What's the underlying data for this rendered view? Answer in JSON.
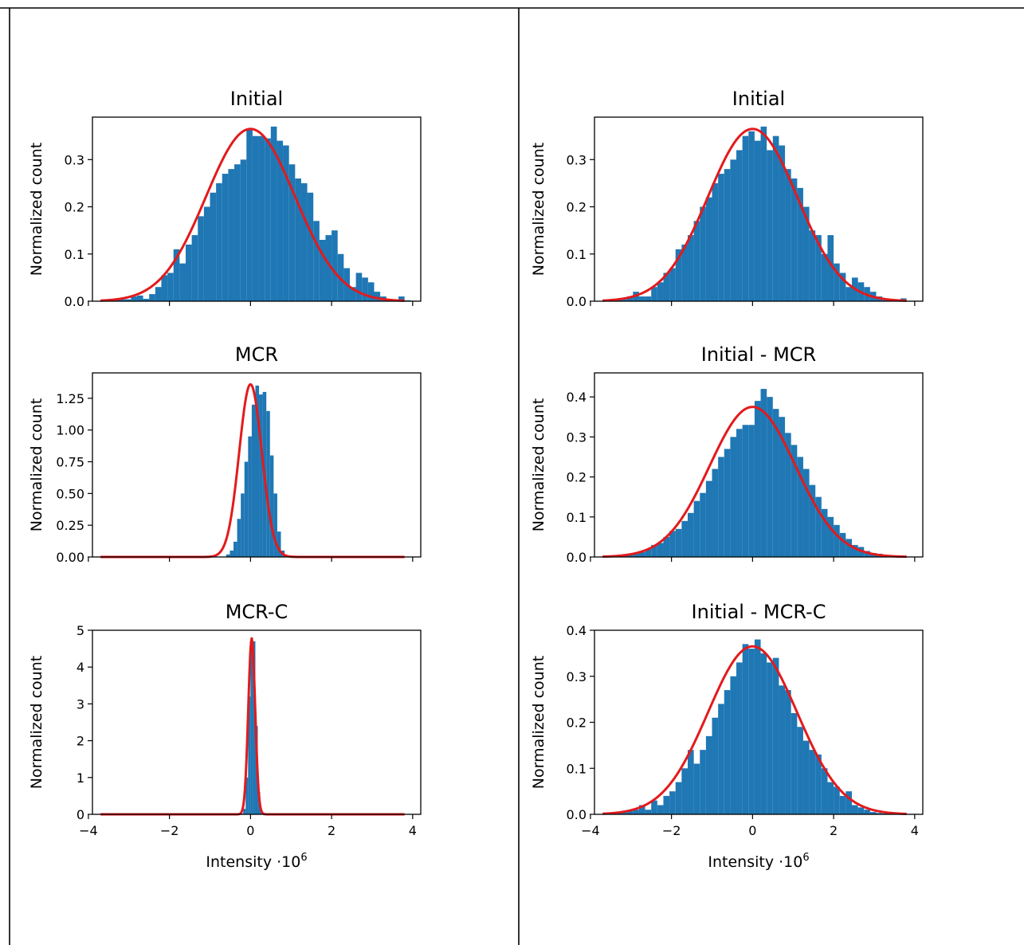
{
  "colors": {
    "bar": "#1f77b4",
    "fit": "#e31a1c",
    "axis": "#000000"
  },
  "x_label_main": "Intensity ·10",
  "x_label_exp": "6",
  "x_ticks": [
    -4,
    -2,
    0,
    2,
    4
  ],
  "x_tick_labels": [
    "−4",
    "−2",
    "0",
    "2",
    "4"
  ],
  "chart_data": [
    {
      "type": "bar",
      "title": "Initial",
      "xlabel": "",
      "ylabel": "Normalized count",
      "xlim": [
        -3.9,
        4.2
      ],
      "ylim": [
        0,
        0.39
      ],
      "yticks": [
        0.0,
        0.1,
        0.2,
        0.3
      ],
      "ytick_labels": [
        "0.0",
        "0.1",
        "0.2",
        "0.3"
      ],
      "show_x_labels": false,
      "fit": {
        "mu": 0.0,
        "sigma": 1.1,
        "peak": 0.365
      },
      "bin_start": -3.7,
      "bin_width": 0.15,
      "values": [
        0.002,
        0.002,
        0.003,
        0.004,
        0.004,
        0.01,
        0.012,
        0.005,
        0.015,
        0.03,
        0.055,
        0.06,
        0.11,
        0.08,
        0.12,
        0.14,
        0.18,
        0.2,
        0.23,
        0.25,
        0.27,
        0.28,
        0.29,
        0.3,
        0.365,
        0.35,
        0.35,
        0.345,
        0.37,
        0.34,
        0.33,
        0.29,
        0.26,
        0.25,
        0.23,
        0.17,
        0.13,
        0.14,
        0.15,
        0.1,
        0.07,
        0.03,
        0.06,
        0.05,
        0.04,
        0.02,
        0.01,
        0.005,
        0.003,
        0.01,
        0.002,
        0.001
      ]
    },
    {
      "type": "bar",
      "title": "Initial",
      "xlabel": "",
      "ylabel": "Normalized count",
      "xlim": [
        -3.9,
        4.2
      ],
      "ylim": [
        0,
        0.39
      ],
      "yticks": [
        0.0,
        0.1,
        0.2,
        0.3
      ],
      "ytick_labels": [
        "0.0",
        "0.1",
        "0.2",
        "0.3"
      ],
      "show_x_labels": false,
      "fit": {
        "mu": 0.0,
        "sigma": 1.1,
        "peak": 0.365
      },
      "bin_start": -3.7,
      "bin_width": 0.15,
      "values": [
        0.002,
        0.003,
        0.004,
        0.005,
        0.01,
        0.02,
        0.01,
        0.01,
        0.03,
        0.04,
        0.06,
        0.07,
        0.11,
        0.12,
        0.14,
        0.17,
        0.2,
        0.22,
        0.25,
        0.27,
        0.28,
        0.3,
        0.32,
        0.35,
        0.36,
        0.34,
        0.37,
        0.32,
        0.35,
        0.33,
        0.28,
        0.26,
        0.24,
        0.2,
        0.15,
        0.14,
        0.1,
        0.14,
        0.08,
        0.06,
        0.03,
        0.05,
        0.04,
        0.03,
        0.02,
        0.01,
        0.005,
        0.003,
        0.002,
        0.006,
        0.001,
        0.001
      ]
    },
    {
      "type": "bar",
      "title": "MCR",
      "xlabel": "",
      "ylabel": "Normalized count",
      "xlim": [
        -3.9,
        4.2
      ],
      "ylim": [
        0,
        1.45
      ],
      "yticks": [
        0.0,
        0.25,
        0.5,
        0.75,
        1.0,
        1.25
      ],
      "ytick_labels": [
        "0.00",
        "0.25",
        "0.50",
        "0.75",
        "1.00",
        "1.25"
      ],
      "show_x_labels": false,
      "fit": {
        "mu": 0.0,
        "sigma": 0.28,
        "peak": 1.36
      },
      "bin_start": -0.6,
      "bin_width": 0.09,
      "values": [
        0.02,
        0.05,
        0.12,
        0.3,
        0.5,
        0.75,
        0.95,
        1.2,
        1.35,
        1.28,
        1.3,
        1.15,
        0.8,
        0.5,
        0.2,
        0.05
      ]
    },
    {
      "type": "bar",
      "title": "Initial - MCR",
      "xlabel": "",
      "ylabel": "Normalized count",
      "xlim": [
        -3.9,
        4.2
      ],
      "ylim": [
        0,
        0.46
      ],
      "yticks": [
        0.0,
        0.1,
        0.2,
        0.3,
        0.4
      ],
      "ytick_labels": [
        "0.0",
        "0.1",
        "0.2",
        "0.3",
        "0.4"
      ],
      "show_x_labels": false,
      "fit": {
        "mu": 0.0,
        "sigma": 1.06,
        "peak": 0.375
      },
      "bin_start": -3.7,
      "bin_width": 0.15,
      "values": [
        0.001,
        0.002,
        0.003,
        0.004,
        0.005,
        0.008,
        0.012,
        0.02,
        0.03,
        0.035,
        0.05,
        0.065,
        0.07,
        0.09,
        0.11,
        0.14,
        0.16,
        0.19,
        0.22,
        0.25,
        0.27,
        0.3,
        0.32,
        0.33,
        0.33,
        0.39,
        0.42,
        0.4,
        0.37,
        0.35,
        0.31,
        0.28,
        0.25,
        0.22,
        0.18,
        0.15,
        0.12,
        0.1,
        0.08,
        0.06,
        0.045,
        0.03,
        0.025,
        0.015,
        0.01,
        0.008,
        0.005,
        0.003,
        0.002,
        0.001,
        0.001,
        0.001
      ]
    },
    {
      "type": "bar",
      "title": "MCR-C",
      "xlabel": "",
      "ylabel": "Normalized count",
      "xlim": [
        -3.9,
        4.2
      ],
      "ylim": [
        0,
        5.0
      ],
      "yticks": [
        0,
        1,
        2,
        3,
        4,
        5
      ],
      "ytick_labels": [
        "0",
        "1",
        "2",
        "3",
        "4",
        "5"
      ],
      "show_x_labels": true,
      "fit": {
        "mu": 0.03,
        "sigma": 0.085,
        "peak": 4.78
      },
      "bin_start": -0.24,
      "bin_width": 0.06,
      "values": [
        0.02,
        0.15,
        1.0,
        3.2,
        4.8,
        4.7,
        2.4,
        0.6,
        0.1,
        0.02
      ]
    },
    {
      "type": "bar",
      "title": "Initial - MCR-C",
      "xlabel": "",
      "ylabel": "Normalized count",
      "xlim": [
        -3.9,
        4.2
      ],
      "ylim": [
        0,
        0.4
      ],
      "yticks": [
        0.0,
        0.1,
        0.2,
        0.3,
        0.4
      ],
      "ytick_labels": [
        "0.0",
        "0.1",
        "0.2",
        "0.3",
        "0.4"
      ],
      "show_x_labels": true,
      "fit": {
        "mu": 0.0,
        "sigma": 1.1,
        "peak": 0.365
      },
      "bin_start": -3.7,
      "bin_width": 0.15,
      "values": [
        0.001,
        0.002,
        0.003,
        0.005,
        0.007,
        0.01,
        0.02,
        0.01,
        0.03,
        0.02,
        0.04,
        0.05,
        0.07,
        0.1,
        0.14,
        0.11,
        0.14,
        0.17,
        0.21,
        0.24,
        0.27,
        0.3,
        0.33,
        0.37,
        0.36,
        0.38,
        0.35,
        0.33,
        0.34,
        0.28,
        0.27,
        0.22,
        0.19,
        0.16,
        0.14,
        0.13,
        0.1,
        0.07,
        0.06,
        0.04,
        0.05,
        0.02,
        0.015,
        0.01,
        0.005,
        0.003,
        0.002,
        0.001,
        0.001,
        0.001,
        0.001,
        0.001
      ]
    }
  ]
}
